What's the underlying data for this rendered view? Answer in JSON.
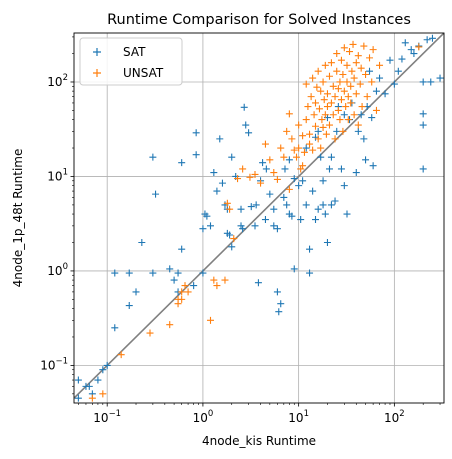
{
  "chart_data": {
    "type": "scatter",
    "title": "Runtime Comparison for Solved Instances",
    "xlabel": "4node_kis Runtime",
    "ylabel": "4node_1p_48t Runtime",
    "xscale": "log",
    "yscale": "log",
    "xlim": [
      0.045,
      330
    ],
    "ylim": [
      0.04,
      330
    ],
    "grid": true,
    "legend_position": "top-left",
    "diagonal": true,
    "diagonal_color": "#808080",
    "x_ticks": [
      {
        "value": 0.1,
        "base": "10",
        "exp": "−1"
      },
      {
        "value": 1,
        "base": "10",
        "exp": "0"
      },
      {
        "value": 10,
        "base": "10",
        "exp": "1"
      },
      {
        "value": 100,
        "base": "10",
        "exp": "2"
      }
    ],
    "y_ticks": [
      {
        "value": 0.1,
        "base": "10",
        "exp": "−1"
      },
      {
        "value": 1,
        "base": "10",
        "exp": "0"
      },
      {
        "value": 10,
        "base": "10",
        "exp": "1"
      },
      {
        "value": 100,
        "base": "10",
        "exp": "2"
      }
    ],
    "series": [
      {
        "name": "SAT",
        "color": "#1f77b4",
        "marker": "plus",
        "points": [
          [
            0.05,
            0.07
          ],
          [
            0.06,
            0.06
          ],
          [
            0.05,
            0.045
          ],
          [
            0.07,
            0.05
          ],
          [
            0.065,
            0.06
          ],
          [
            0.08,
            0.07
          ],
          [
            0.1,
            0.1
          ],
          [
            0.09,
            0.09
          ],
          [
            0.12,
            0.25
          ],
          [
            0.12,
            0.95
          ],
          [
            0.17,
            0.95
          ],
          [
            0.17,
            0.43
          ],
          [
            0.2,
            0.6
          ],
          [
            0.23,
            2.0
          ],
          [
            0.3,
            0.95
          ],
          [
            0.3,
            16
          ],
          [
            0.32,
            6.5
          ],
          [
            0.45,
            1.05
          ],
          [
            0.5,
            0.8
          ],
          [
            0.55,
            0.6
          ],
          [
            0.55,
            0.95
          ],
          [
            0.6,
            1.7
          ],
          [
            0.6,
            14
          ],
          [
            0.8,
            0.7
          ],
          [
            0.85,
            17
          ],
          [
            0.85,
            29
          ],
          [
            1.0,
            0.95
          ],
          [
            1.0,
            2.8
          ],
          [
            1.05,
            4.0
          ],
          [
            1.1,
            3.8
          ],
          [
            1.2,
            3.0
          ],
          [
            1.3,
            11
          ],
          [
            1.4,
            7
          ],
          [
            1.5,
            25
          ],
          [
            1.6,
            8.5
          ],
          [
            1.7,
            5.0
          ],
          [
            1.8,
            4.5
          ],
          [
            1.8,
            2.5
          ],
          [
            1.9,
            2.4
          ],
          [
            2.0,
            1.8
          ],
          [
            2.0,
            16
          ],
          [
            2.2,
            10
          ],
          [
            2.5,
            4.5
          ],
          [
            2.5,
            3.0
          ],
          [
            2.6,
            2.8
          ],
          [
            2.7,
            54
          ],
          [
            2.8,
            35
          ],
          [
            3.0,
            29
          ],
          [
            3.2,
            4.8
          ],
          [
            3.5,
            3.0
          ],
          [
            3.6,
            5.0
          ],
          [
            3.8,
            0.75
          ],
          [
            4.0,
            9
          ],
          [
            4.2,
            14
          ],
          [
            4.5,
            3.5
          ],
          [
            4.6,
            12
          ],
          [
            5.0,
            6.5
          ],
          [
            5.5,
            4.5
          ],
          [
            5.5,
            3.0
          ],
          [
            6.0,
            2.8
          ],
          [
            6.0,
            0.6
          ],
          [
            6.2,
            0.37
          ],
          [
            6.5,
            0.45
          ],
          [
            7.0,
            6
          ],
          [
            7.2,
            12
          ],
          [
            7.5,
            5
          ],
          [
            8.0,
            4
          ],
          [
            8.0,
            15
          ],
          [
            8.5,
            3.8
          ],
          [
            9.0,
            1.05
          ],
          [
            9.0,
            9.5
          ],
          [
            10,
            8
          ],
          [
            10.5,
            3.5
          ],
          [
            11,
            9
          ],
          [
            12,
            5
          ],
          [
            12,
            20
          ],
          [
            13,
            1.7
          ],
          [
            13,
            0.95
          ],
          [
            14,
            7
          ],
          [
            15,
            3.5
          ],
          [
            15,
            26
          ],
          [
            16,
            4.5
          ],
          [
            16,
            30
          ],
          [
            17,
            16
          ],
          [
            18,
            5
          ],
          [
            18,
            9
          ],
          [
            19,
            4
          ],
          [
            20,
            2.0
          ],
          [
            20,
            42
          ],
          [
            21,
            12
          ],
          [
            22,
            5
          ],
          [
            22,
            16
          ],
          [
            24,
            5.5
          ],
          [
            25,
            30
          ],
          [
            26,
            55
          ],
          [
            28,
            12
          ],
          [
            30,
            8
          ],
          [
            30,
            45
          ],
          [
            32,
            4.0
          ],
          [
            34,
            40
          ],
          [
            36,
            60
          ],
          [
            40,
            11
          ],
          [
            42,
            30
          ],
          [
            45,
            45
          ],
          [
            48,
            25
          ],
          [
            50,
            15
          ],
          [
            52,
            55
          ],
          [
            55,
            130
          ],
          [
            58,
            42
          ],
          [
            60,
            13
          ],
          [
            65,
            80
          ],
          [
            70,
            110
          ],
          [
            80,
            75
          ],
          [
            90,
            170
          ],
          [
            100,
            95
          ],
          [
            110,
            130
          ],
          [
            120,
            175
          ],
          [
            130,
            260
          ],
          [
            150,
            220
          ],
          [
            160,
            200
          ],
          [
            180,
            240
          ],
          [
            200,
            100
          ],
          [
            200,
            46
          ],
          [
            200,
            35
          ],
          [
            200,
            12
          ],
          [
            220,
            280
          ],
          [
            240,
            100
          ],
          [
            250,
            290
          ],
          [
            300,
            110
          ]
        ]
      },
      {
        "name": "UNSAT",
        "color": "#ff7f0e",
        "marker": "plus",
        "points": [
          [
            0.07,
            0.045
          ],
          [
            0.09,
            0.05
          ],
          [
            0.14,
            0.13
          ],
          [
            0.28,
            0.22
          ],
          [
            0.45,
            0.27
          ],
          [
            0.55,
            0.45
          ],
          [
            0.55,
            0.5
          ],
          [
            0.6,
            0.5
          ],
          [
            0.6,
            0.6
          ],
          [
            0.65,
            0.7
          ],
          [
            0.7,
            0.6
          ],
          [
            1.2,
            0.3
          ],
          [
            1.3,
            0.8
          ],
          [
            1.4,
            0.7
          ],
          [
            1.7,
            0.8
          ],
          [
            1.8,
            5.2
          ],
          [
            1.9,
            4.5
          ],
          [
            2.1,
            2.2
          ],
          [
            2.3,
            9.5
          ],
          [
            2.6,
            12
          ],
          [
            3.1,
            9.8
          ],
          [
            3.5,
            10.5
          ],
          [
            4.0,
            8.5
          ],
          [
            4.5,
            22
          ],
          [
            5.0,
            15
          ],
          [
            5.5,
            11
          ],
          [
            6.0,
            9.3
          ],
          [
            6.5,
            20
          ],
          [
            7.0,
            16
          ],
          [
            7.5,
            30
          ],
          [
            8.0,
            7.3
          ],
          [
            8.0,
            46
          ],
          [
            8.5,
            25
          ],
          [
            9.0,
            19
          ],
          [
            9.5,
            16
          ],
          [
            10,
            20
          ],
          [
            10,
            35
          ],
          [
            10.5,
            12
          ],
          [
            11,
            13
          ],
          [
            11,
            27
          ],
          [
            11.5,
            18
          ],
          [
            12,
            40
          ],
          [
            12,
            95
          ],
          [
            12.5,
            55
          ],
          [
            13,
            22
          ],
          [
            13,
            28
          ],
          [
            13.5,
            70
          ],
          [
            14,
            19
          ],
          [
            14,
            110
          ],
          [
            14.5,
            45
          ],
          [
            15,
            34
          ],
          [
            15,
            60
          ],
          [
            15.5,
            88
          ],
          [
            16,
            25
          ],
          [
            16,
            130
          ],
          [
            16.5,
            52
          ],
          [
            17,
            20
          ],
          [
            17,
            80
          ],
          [
            17.5,
            40
          ],
          [
            18,
            33
          ],
          [
            18,
            100
          ],
          [
            18.5,
            65
          ],
          [
            19,
            45
          ],
          [
            19,
            150
          ],
          [
            19.5,
            28
          ],
          [
            20,
            55
          ],
          [
            20,
            75
          ],
          [
            21,
            115
          ],
          [
            21,
            35
          ],
          [
            22,
            60
          ],
          [
            22,
            160
          ],
          [
            23,
            45
          ],
          [
            23,
            90
          ],
          [
            24,
            25
          ],
          [
            24,
            70
          ],
          [
            25,
            130
          ],
          [
            25,
            200
          ],
          [
            26,
            50
          ],
          [
            26,
            85
          ],
          [
            27,
            100
          ],
          [
            27,
            40
          ],
          [
            28,
            65
          ],
          [
            28,
            170
          ],
          [
            29,
            120
          ],
          [
            29,
            30
          ],
          [
            30,
            80
          ],
          [
            30,
            230
          ],
          [
            31,
            55
          ],
          [
            32,
            100
          ],
          [
            32,
            150
          ],
          [
            33,
            70
          ],
          [
            33,
            40
          ],
          [
            34,
            210
          ],
          [
            35,
            90
          ],
          [
            35,
            60
          ],
          [
            36,
            130
          ],
          [
            37,
            250
          ],
          [
            38,
            45
          ],
          [
            38,
            110
          ],
          [
            40,
            75
          ],
          [
            40,
            160
          ],
          [
            42,
            35
          ],
          [
            42,
            190
          ],
          [
            44,
            95
          ],
          [
            45,
            140
          ],
          [
            46,
            55
          ],
          [
            48,
            240
          ],
          [
            50,
            120
          ],
          [
            52,
            70
          ],
          [
            55,
            180
          ],
          [
            58,
            100
          ],
          [
            60,
            220
          ],
          [
            65,
            50
          ],
          [
            70,
            150
          ],
          [
            180,
            235
          ]
        ]
      }
    ]
  }
}
